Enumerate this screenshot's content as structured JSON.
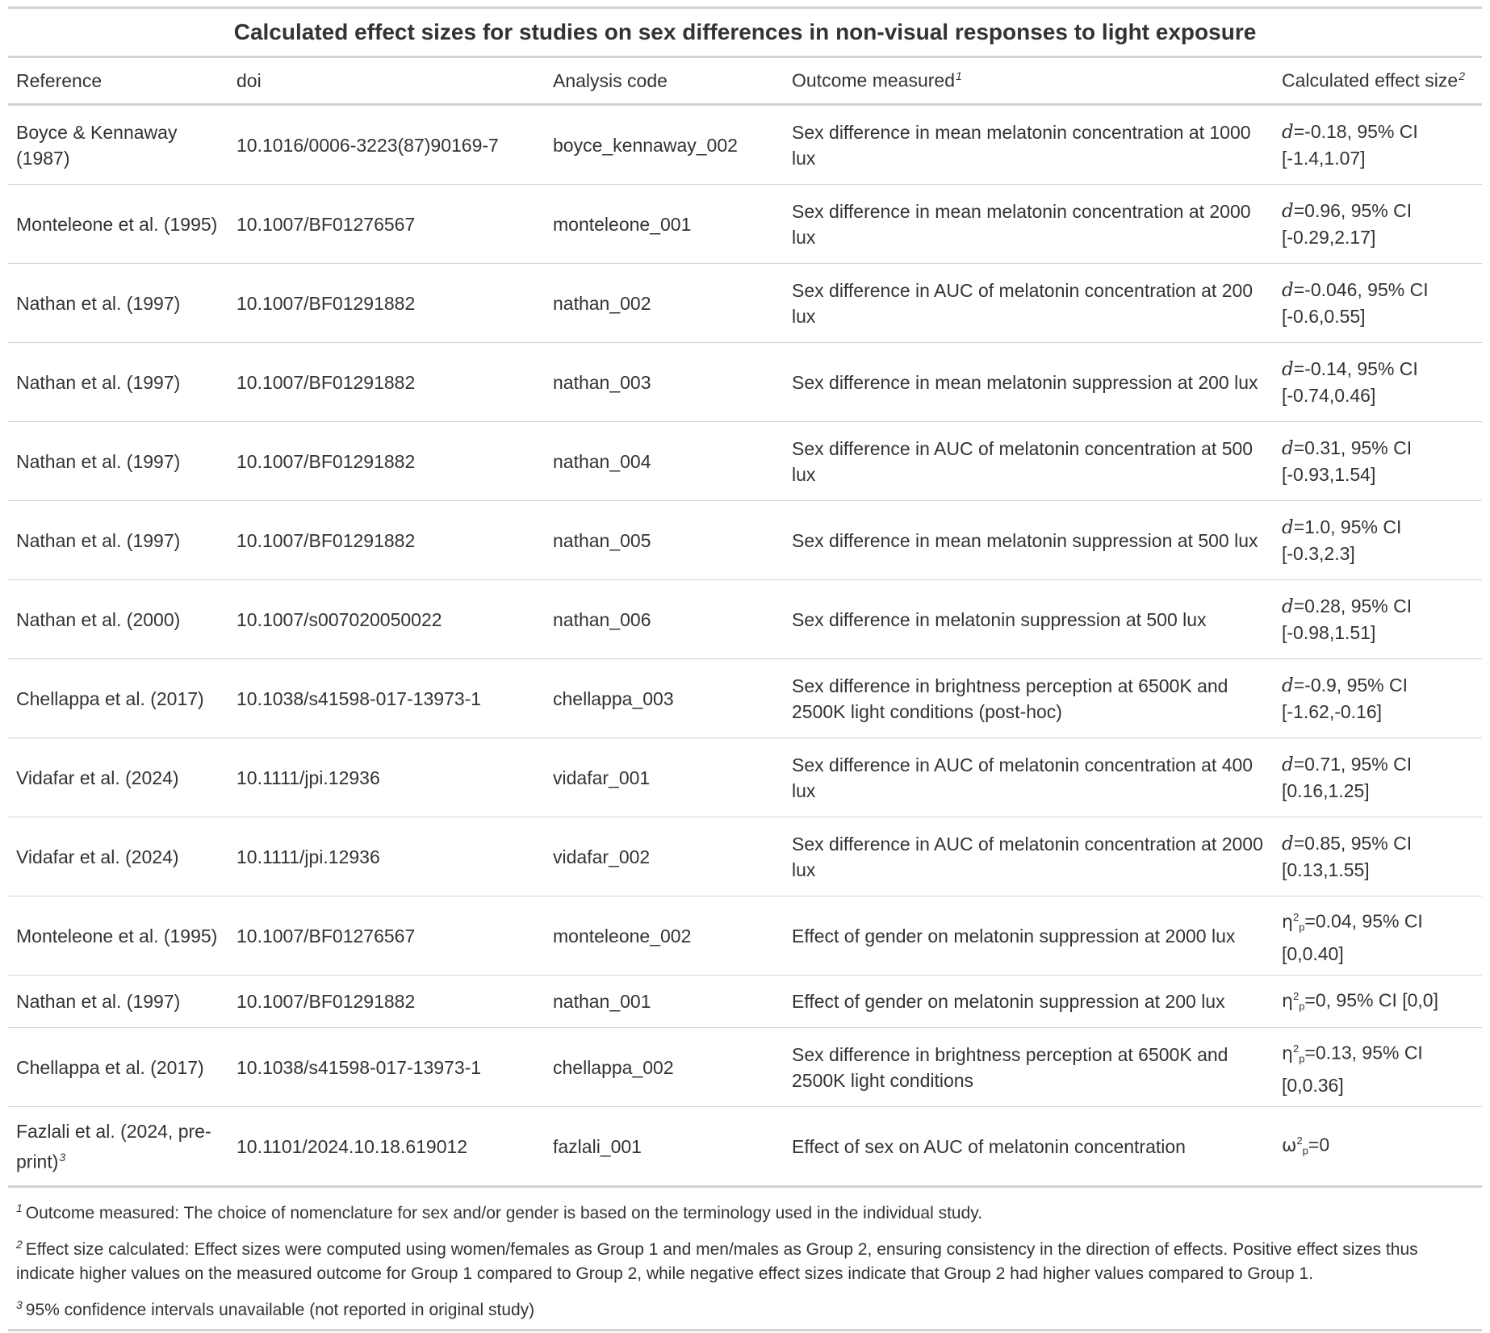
{
  "title": "Calculated effect sizes for studies on sex differences in non-visual responses to light exposure",
  "columns": {
    "reference": "Reference",
    "doi": "doi",
    "analysis_code": "Analysis code",
    "outcome": "Outcome measured",
    "outcome_fn": "1",
    "effect": "Calculated effect size",
    "effect_fn": "2"
  },
  "rows": [
    {
      "reference": "Boyce & Kennaway (1987)",
      "doi": "10.1016/0006-3223(87)90169-7",
      "code": "boyce_kennaway_002",
      "outcome": "Sex difference in mean melatonin concentration at 1000 lux",
      "sym": "d",
      "sup": "",
      "sub": "",
      "val": "=-0.18, 95% CI [-1.4,1.07]"
    },
    {
      "reference": "Monteleone et al. (1995)",
      "doi": "10.1007/BF01276567",
      "code": "monteleone_001",
      "outcome": "Sex difference in mean melatonin concentration at 2000 lux",
      "sym": "d",
      "sup": "",
      "sub": "",
      "val": "=0.96, 95% CI [-0.29,2.17]"
    },
    {
      "reference": "Nathan et al. (1997)",
      "doi": "10.1007/BF01291882",
      "code": "nathan_002",
      "outcome": "Sex difference in AUC of melatonin concentration at 200 lux",
      "sym": "d",
      "sup": "",
      "sub": "",
      "val": "=-0.046, 95% CI [-0.6,0.55]"
    },
    {
      "reference": "Nathan et al. (1997)",
      "doi": "10.1007/BF01291882",
      "code": "nathan_003",
      "outcome": "Sex difference in mean melatonin suppression at 200 lux",
      "sym": "d",
      "sup": "",
      "sub": "",
      "val": "=-0.14, 95% CI [-0.74,0.46]"
    },
    {
      "reference": "Nathan et al. (1997)",
      "doi": "10.1007/BF01291882",
      "code": "nathan_004",
      "outcome": "Sex difference in AUC of melatonin concentration at 500 lux",
      "sym": "d",
      "sup": "",
      "sub": "",
      "val": "=0.31, 95% CI [-0.93,1.54]"
    },
    {
      "reference": "Nathan et al. (1997)",
      "doi": "10.1007/BF01291882",
      "code": "nathan_005",
      "outcome": "Sex difference in mean melatonin suppression at 500 lux",
      "sym": "d",
      "sup": "",
      "sub": "",
      "val": "=1.0, 95% CI [-0.3,2.3]"
    },
    {
      "reference": "Nathan et al. (2000)",
      "doi": "10.1007/s007020050022",
      "code": "nathan_006",
      "outcome": "Sex difference in melatonin suppression at 500 lux",
      "sym": "d",
      "sup": "",
      "sub": "",
      "val": "=0.28, 95% CI [-0.98,1.51]"
    },
    {
      "reference": "Chellappa et al. (2017)",
      "doi": "10.1038/s41598-017-13973-1",
      "code": "chellappa_003",
      "outcome": "Sex difference in brightness perception at 6500K and 2500K light conditions (post-hoc)",
      "sym": "d",
      "sup": "",
      "sub": "",
      "val": "=-0.9, 95% CI [-1.62,-0.16]"
    },
    {
      "reference": "Vidafar et al. (2024)",
      "doi": "10.1111/jpi.12936",
      "code": "vidafar_001",
      "outcome": "Sex difference in AUC of melatonin concentration at 400 lux",
      "sym": "d",
      "sup": "",
      "sub": "",
      "val": "=0.71, 95% CI [0.16,1.25]"
    },
    {
      "reference": "Vidafar et al. (2024)",
      "doi": "10.1111/jpi.12936",
      "code": "vidafar_002",
      "outcome": "Sex difference in AUC of melatonin concentration at 2000 lux",
      "sym": "d",
      "sup": "",
      "sub": "",
      "val": "=0.85, 95% CI [0.13,1.55]"
    },
    {
      "reference": "Monteleone et al. (1995)",
      "doi": "10.1007/BF01276567",
      "code": "monteleone_002",
      "outcome": "Effect of gender on melatonin suppression at 2000 lux",
      "sym": "η",
      "sup": "2",
      "sub": "p",
      "val": "=0.04, 95% CI [0,0.40]"
    },
    {
      "reference": "Nathan et al. (1997)",
      "doi": "10.1007/BF01291882",
      "code": "nathan_001",
      "outcome": "Effect of gender on melatonin suppression at 200 lux",
      "sym": "η",
      "sup": "2",
      "sub": "p",
      "val": "=0, 95% CI [0,0]"
    },
    {
      "reference": "Chellappa et al. (2017)",
      "doi": "10.1038/s41598-017-13973-1",
      "code": "chellappa_002",
      "outcome": "Sex difference in brightness perception at 6500K and 2500K light conditions",
      "sym": "η",
      "sup": "2",
      "sub": "p",
      "val": "=0.13, 95% CI [0,0.36]"
    },
    {
      "reference": "Fazlali et al. (2024, pre-print)",
      "ref_fn": "3",
      "doi": "10.1101/2024.10.18.619012",
      "code": "fazlali_001",
      "outcome": "Effect of sex on AUC of melatonin concentration",
      "sym": "ω",
      "sup": "2",
      "sub": "p",
      "val": "=0"
    }
  ],
  "footnotes": [
    {
      "mark": "1",
      "text": "Outcome measured: The choice of nomenclature for sex and/or gender is based on the terminology used in the individual study."
    },
    {
      "mark": "2",
      "text": "Effect size calculated: Effect sizes were computed using women/females as Group 1 and men/males as Group 2, ensuring consistency in the direction of effects. Positive effect sizes thus indicate higher values on the measured outcome for Group 1 compared to Group 2, while negative effect sizes indicate that Group 2 had higher values compared to Group 1."
    },
    {
      "mark": "3",
      "text": "95% confidence intervals unavailable (not reported in original study)"
    }
  ]
}
